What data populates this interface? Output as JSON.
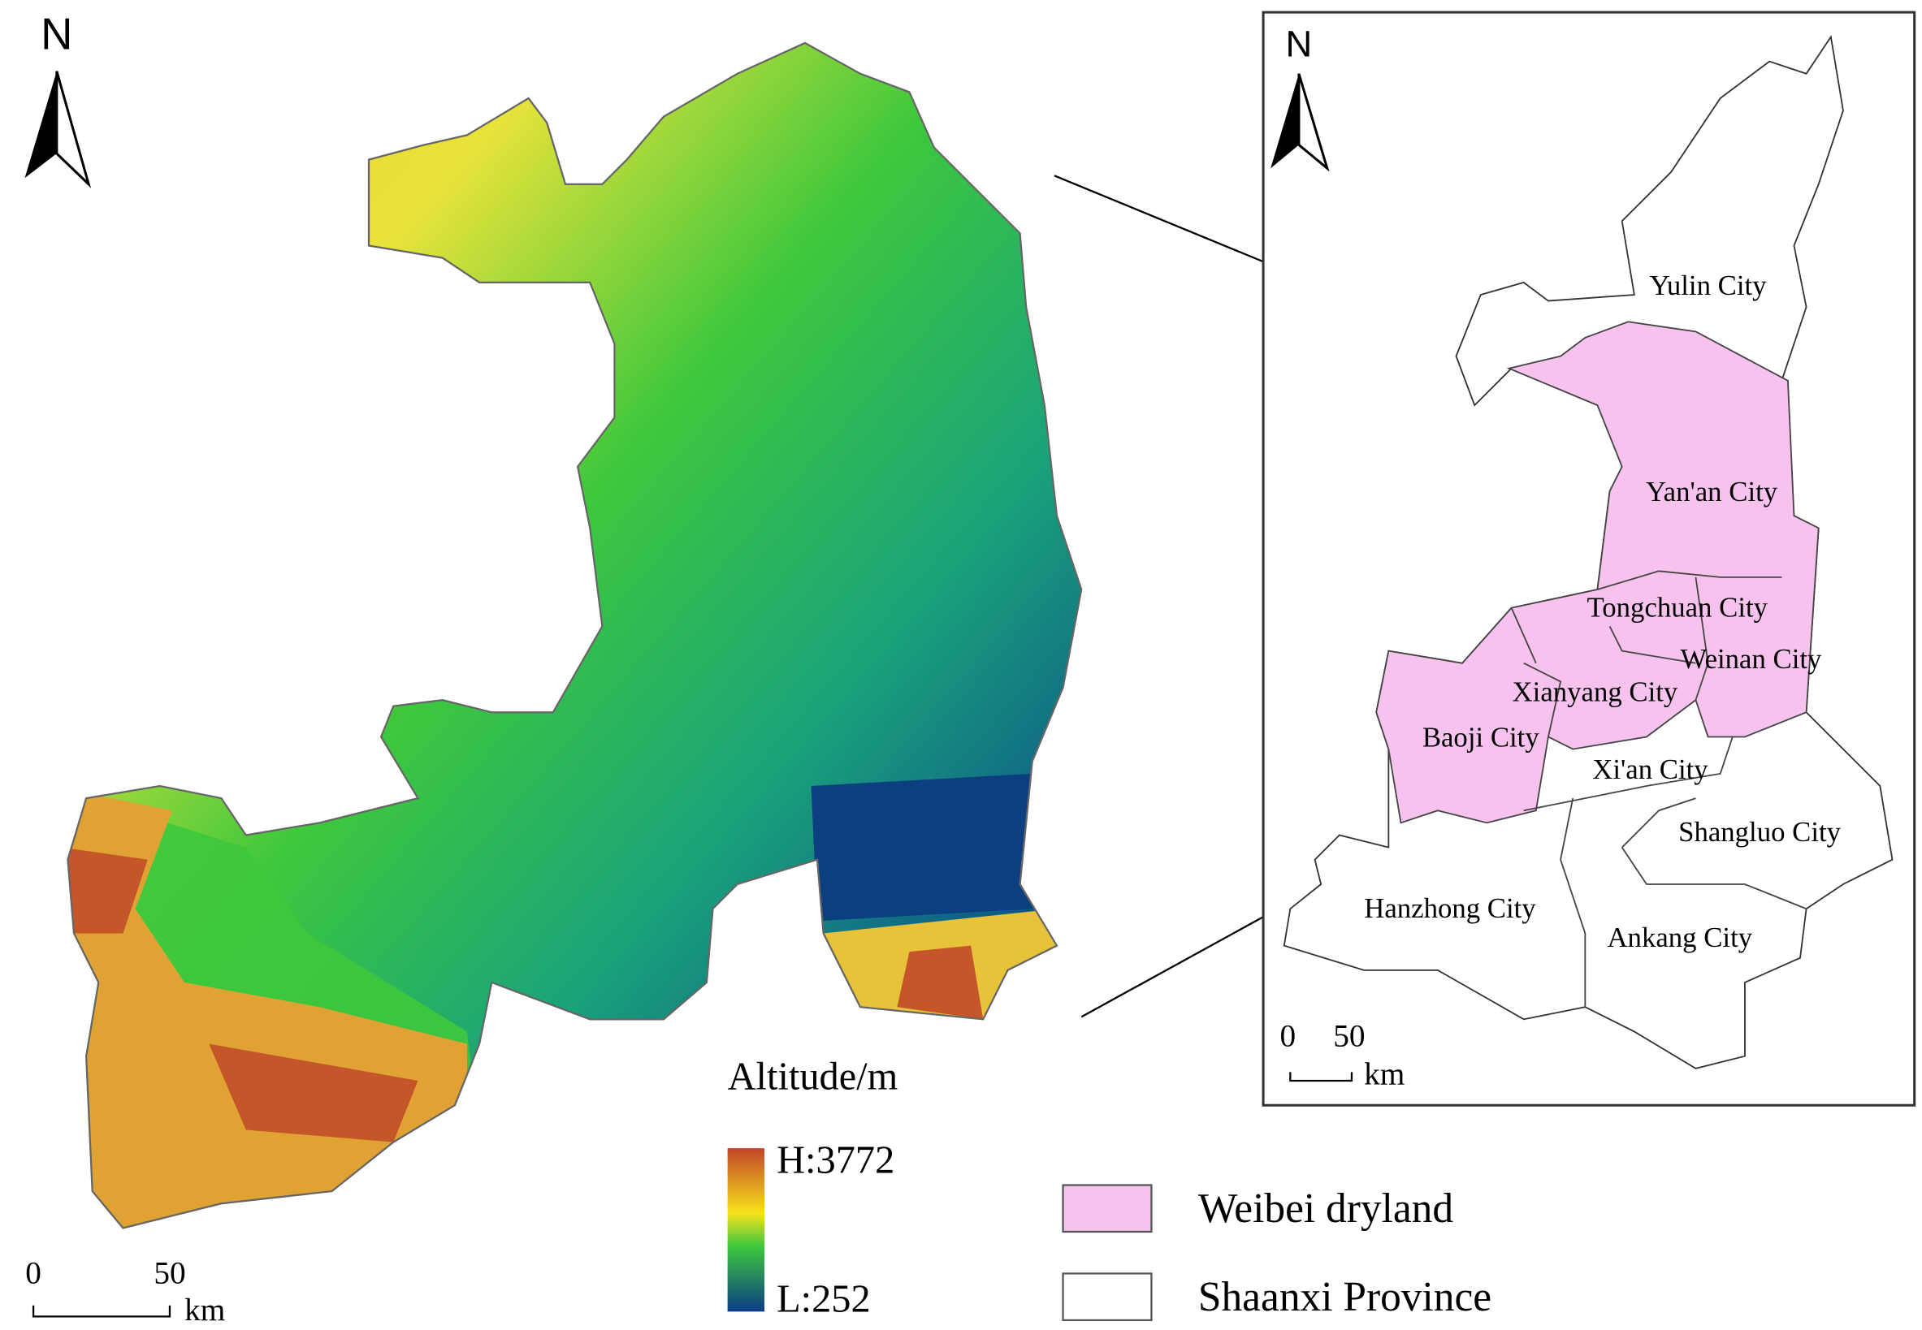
{
  "main_map": {
    "north": "N",
    "scale_bar": {
      "start": "0",
      "end": "50",
      "unit": "km"
    }
  },
  "altitude_legend": {
    "title": "Altitude/m",
    "high": "H:3772",
    "low": "L:252"
  },
  "inset_map": {
    "north": "N",
    "scale_bar": {
      "start": "0",
      "end": "50",
      "unit": "km"
    },
    "cities": [
      "Yulin City",
      "Yan'an City",
      "Tongchuan City",
      "Weinan City",
      "Xianyang City",
      "Baoji City",
      "Xi'an City",
      "Shangluo City",
      "Hanzhong City",
      "Ankang City"
    ]
  },
  "key": [
    {
      "label": "Weibei dryland",
      "color": "#f7c3ee"
    },
    {
      "label": "Shaanxi Province",
      "color": "#ffffff"
    }
  ]
}
